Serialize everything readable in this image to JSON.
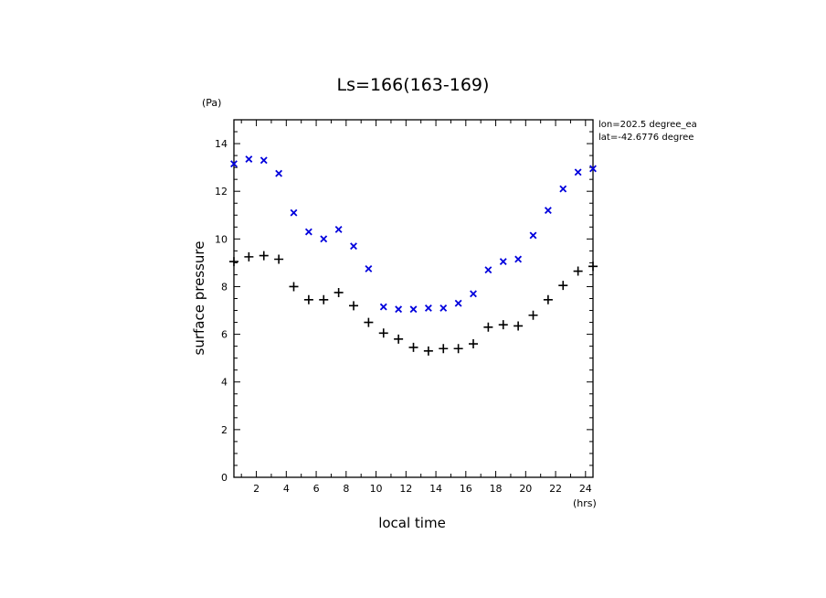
{
  "chart_data": {
    "type": "scatter",
    "title": "Ls=166(163-169)",
    "xlabel": "local time",
    "xunit": "(hrs)",
    "ylabel": "surface pressure",
    "yunit": "(Pa)",
    "xlim": [
      0.5,
      24.5
    ],
    "ylim": [
      0,
      15
    ],
    "xticks": [
      "2",
      "4",
      "6",
      "8",
      "10",
      "12",
      "14",
      "16",
      "18",
      "20",
      "22",
      "24"
    ],
    "yticks": [
      "0",
      "2",
      "4",
      "6",
      "8",
      "10",
      "12",
      "14"
    ],
    "annotations": [
      "lon=202.5 degree_ea",
      "lat=-42.6776 degree"
    ],
    "x": [
      0.5,
      1.5,
      2.5,
      3.5,
      4.5,
      5.5,
      6.5,
      7.5,
      8.5,
      9.5,
      10.5,
      11.5,
      12.5,
      13.5,
      14.5,
      15.5,
      16.5,
      17.5,
      18.5,
      19.5,
      20.5,
      21.5,
      22.5,
      23.5,
      24.5
    ],
    "series": [
      {
        "marker": "x",
        "color": "#0000dd",
        "values": [
          13.15,
          13.35,
          13.3,
          12.75,
          11.1,
          10.3,
          10.0,
          10.4,
          9.7,
          8.75,
          7.15,
          7.05,
          7.05,
          7.1,
          7.1,
          7.3,
          7.7,
          8.7,
          9.05,
          9.15,
          10.15,
          11.2,
          12.1,
          12.8,
          12.95
        ]
      },
      {
        "marker": "+",
        "color": "#000000",
        "values": [
          9.05,
          9.25,
          9.3,
          9.15,
          8.0,
          7.45,
          7.45,
          7.75,
          7.2,
          6.5,
          6.05,
          5.8,
          5.45,
          5.3,
          5.4,
          5.4,
          5.6,
          6.3,
          6.4,
          6.35,
          6.8,
          7.45,
          8.05,
          8.65,
          8.85
        ]
      }
    ]
  }
}
